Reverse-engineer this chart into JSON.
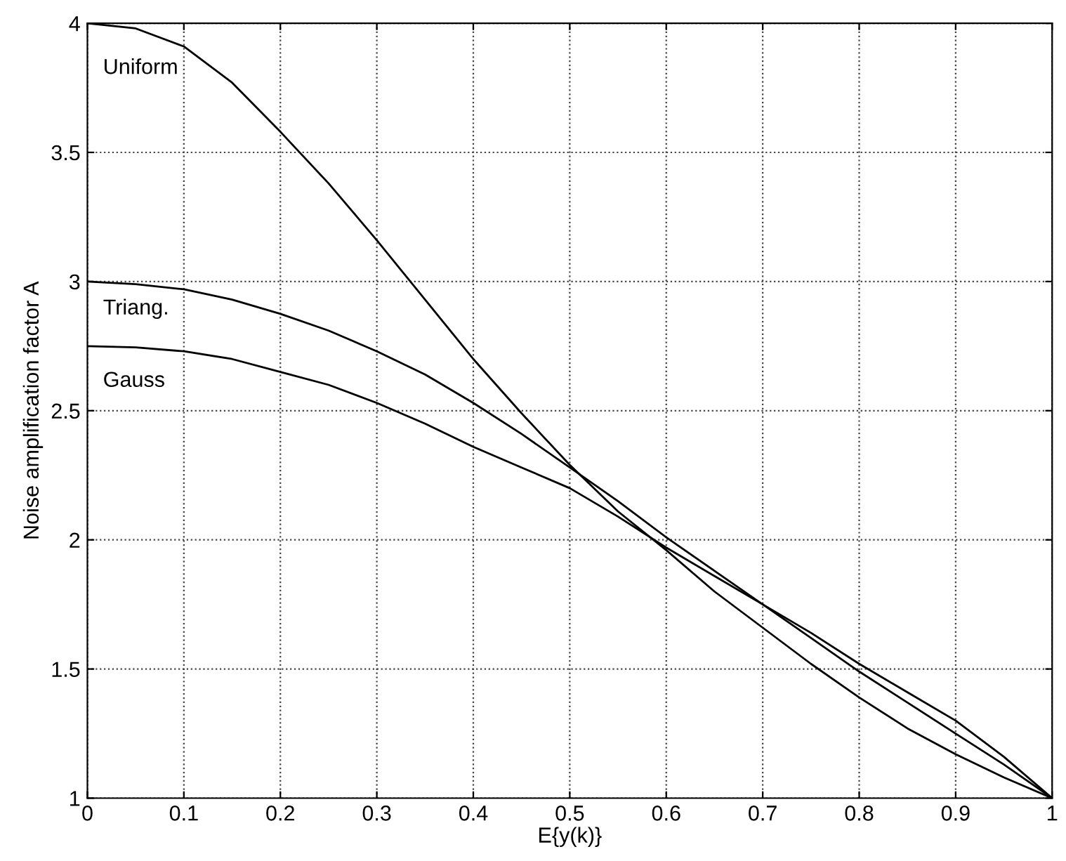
{
  "chart_data": {
    "type": "line",
    "xlabel": "E{y(k)}",
    "ylabel": "Noise amplification factor A",
    "x": [
      0,
      0.05,
      0.1,
      0.15,
      0.2,
      0.25,
      0.3,
      0.35,
      0.4,
      0.45,
      0.5,
      0.55,
      0.6,
      0.65,
      0.7,
      0.75,
      0.8,
      0.85,
      0.9,
      0.95,
      1
    ],
    "series": [
      {
        "color": "#000000",
        "values": [
          4,
          3.98,
          3.91,
          3.77,
          3.58,
          3.38,
          3.16,
          2.93,
          2.7,
          2.49,
          2.29,
          2.11,
          1.96,
          1.8,
          1.66,
          1.52,
          1.39,
          1.27,
          1.17,
          1.08,
          1
        ]
      },
      {
        "color": "#000000",
        "values": [
          3,
          2.99,
          2.97,
          2.93,
          2.875,
          2.81,
          2.73,
          2.64,
          2.53,
          2.41,
          2.28,
          2.15,
          2.01,
          1.88,
          1.75,
          1.62,
          1.49,
          1.37,
          1.25,
          1.13,
          1
        ]
      },
      {
        "color": "#000000",
        "values": [
          2.75,
          2.745,
          2.73,
          2.7,
          2.65,
          2.6,
          2.53,
          2.45,
          2.36,
          2.28,
          2.2,
          2.09,
          1.97,
          1.86,
          1.75,
          1.64,
          1.52,
          1.41,
          1.3,
          1.16,
          1
        ]
      }
    ],
    "annotations": [
      "Uniform",
      "Triang.",
      "Gauss"
    ],
    "xlim": [
      0,
      1
    ],
    "ylim": [
      1,
      4
    ],
    "xticks": [
      0,
      0.1,
      0.2,
      0.3,
      0.4,
      0.5,
      0.6,
      0.7,
      0.8,
      0.9,
      1
    ],
    "yticks": [
      1,
      1.5,
      2,
      2.5,
      3,
      3.5,
      4
    ],
    "grid": true,
    "line_style": "solid",
    "marker": "none"
  }
}
